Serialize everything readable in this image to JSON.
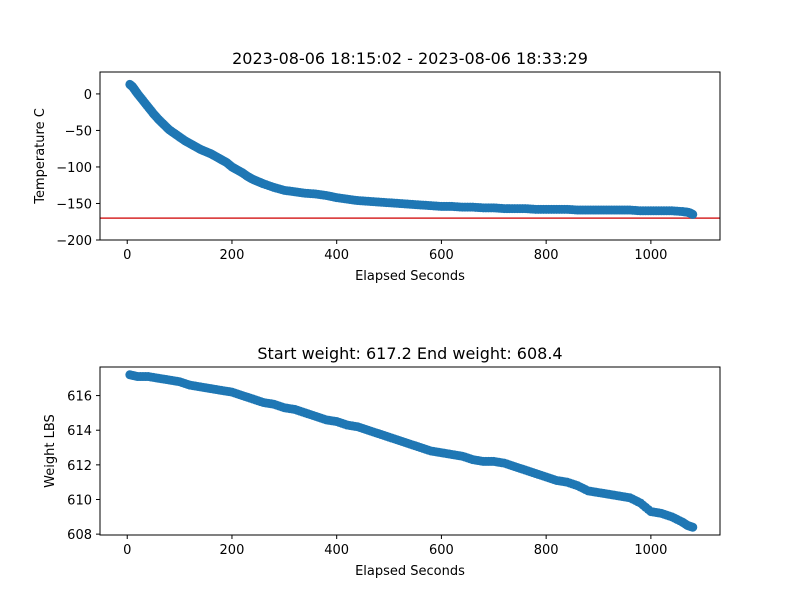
{
  "chart_data": [
    {
      "type": "scatter",
      "title": "2023-08-06 18:15:02 - 2023-08-06 18:33:29",
      "xlabel": "Elapsed Seconds",
      "ylabel": "Temperature C",
      "xlim": [
        -52,
        1132
      ],
      "ylim": [
        -200,
        30
      ],
      "xticks": [
        0,
        200,
        400,
        600,
        800,
        1000
      ],
      "yticks": [
        0,
        -50,
        -100,
        -150,
        -200
      ],
      "marker_color": "#1f77b4",
      "reference_line": {
        "y": -170,
        "color": "#d62728"
      },
      "series": [
        {
          "x": [
            5,
            10,
            15,
            20,
            30,
            40,
            50,
            60,
            70,
            80,
            90,
            100,
            110,
            120,
            130,
            140,
            150,
            160,
            170,
            180,
            190,
            200,
            210,
            220,
            230,
            240,
            250,
            260,
            280,
            300,
            320,
            340,
            360,
            380,
            400,
            420,
            440,
            460,
            480,
            500,
            520,
            540,
            560,
            580,
            600,
            620,
            640,
            660,
            680,
            700,
            720,
            740,
            760,
            780,
            800,
            820,
            840,
            860,
            880,
            900,
            920,
            940,
            960,
            980,
            1000,
            1020,
            1040,
            1060,
            1070,
            1075,
            1080
          ],
          "y": [
            13,
            10,
            5,
            0,
            -9,
            -18,
            -27,
            -35,
            -42,
            -49,
            -54,
            -59,
            -64,
            -68,
            -72,
            -76,
            -79,
            -82,
            -86,
            -90,
            -94,
            -100,
            -104,
            -108,
            -113,
            -117,
            -120,
            -123,
            -128,
            -132,
            -134,
            -136,
            -137,
            -139,
            -142,
            -144,
            -146,
            -147,
            -148,
            -149,
            -150,
            -151,
            -152,
            -153,
            -154,
            -154,
            -155,
            -155,
            -156,
            -156,
            -157,
            -157,
            -157,
            -158,
            -158,
            -158,
            -158,
            -159,
            -159,
            -159,
            -159,
            -159,
            -159,
            -160,
            -160,
            -160,
            -160,
            -161,
            -162,
            -163,
            -165
          ]
        }
      ]
    },
    {
      "type": "scatter",
      "title": "Start weight: 617.2 End weight: 608.4",
      "xlabel": "Elapsed Seconds",
      "ylabel": "Weight LBS",
      "xlim": [
        -52,
        1132
      ],
      "ylim": [
        607.95,
        617.65
      ],
      "xticks": [
        0,
        200,
        400,
        600,
        800,
        1000
      ],
      "yticks": [
        608,
        610,
        612,
        614,
        616
      ],
      "marker_color": "#1f77b4",
      "series": [
        {
          "x": [
            5,
            20,
            40,
            60,
            80,
            100,
            120,
            140,
            160,
            180,
            200,
            220,
            240,
            260,
            280,
            300,
            320,
            340,
            360,
            380,
            400,
            420,
            440,
            460,
            480,
            500,
            520,
            540,
            560,
            580,
            600,
            620,
            640,
            660,
            680,
            700,
            720,
            740,
            760,
            780,
            800,
            820,
            840,
            860,
            880,
            900,
            920,
            940,
            960,
            980,
            1000,
            1020,
            1040,
            1060,
            1070,
            1080
          ],
          "y": [
            617.2,
            617.1,
            617.1,
            617.0,
            616.9,
            616.8,
            616.6,
            616.5,
            616.4,
            616.3,
            616.2,
            616.0,
            615.8,
            615.6,
            615.5,
            615.3,
            615.2,
            615.0,
            614.8,
            614.6,
            614.5,
            614.3,
            614.2,
            614.0,
            613.8,
            613.6,
            613.4,
            613.2,
            613.0,
            612.8,
            612.7,
            612.6,
            612.5,
            612.3,
            612.2,
            612.2,
            612.1,
            611.9,
            611.7,
            611.5,
            611.3,
            611.1,
            611.0,
            610.8,
            610.5,
            610.4,
            610.3,
            610.2,
            610.1,
            609.8,
            609.3,
            609.2,
            609.0,
            608.7,
            608.5,
            608.4
          ]
        }
      ]
    }
  ]
}
